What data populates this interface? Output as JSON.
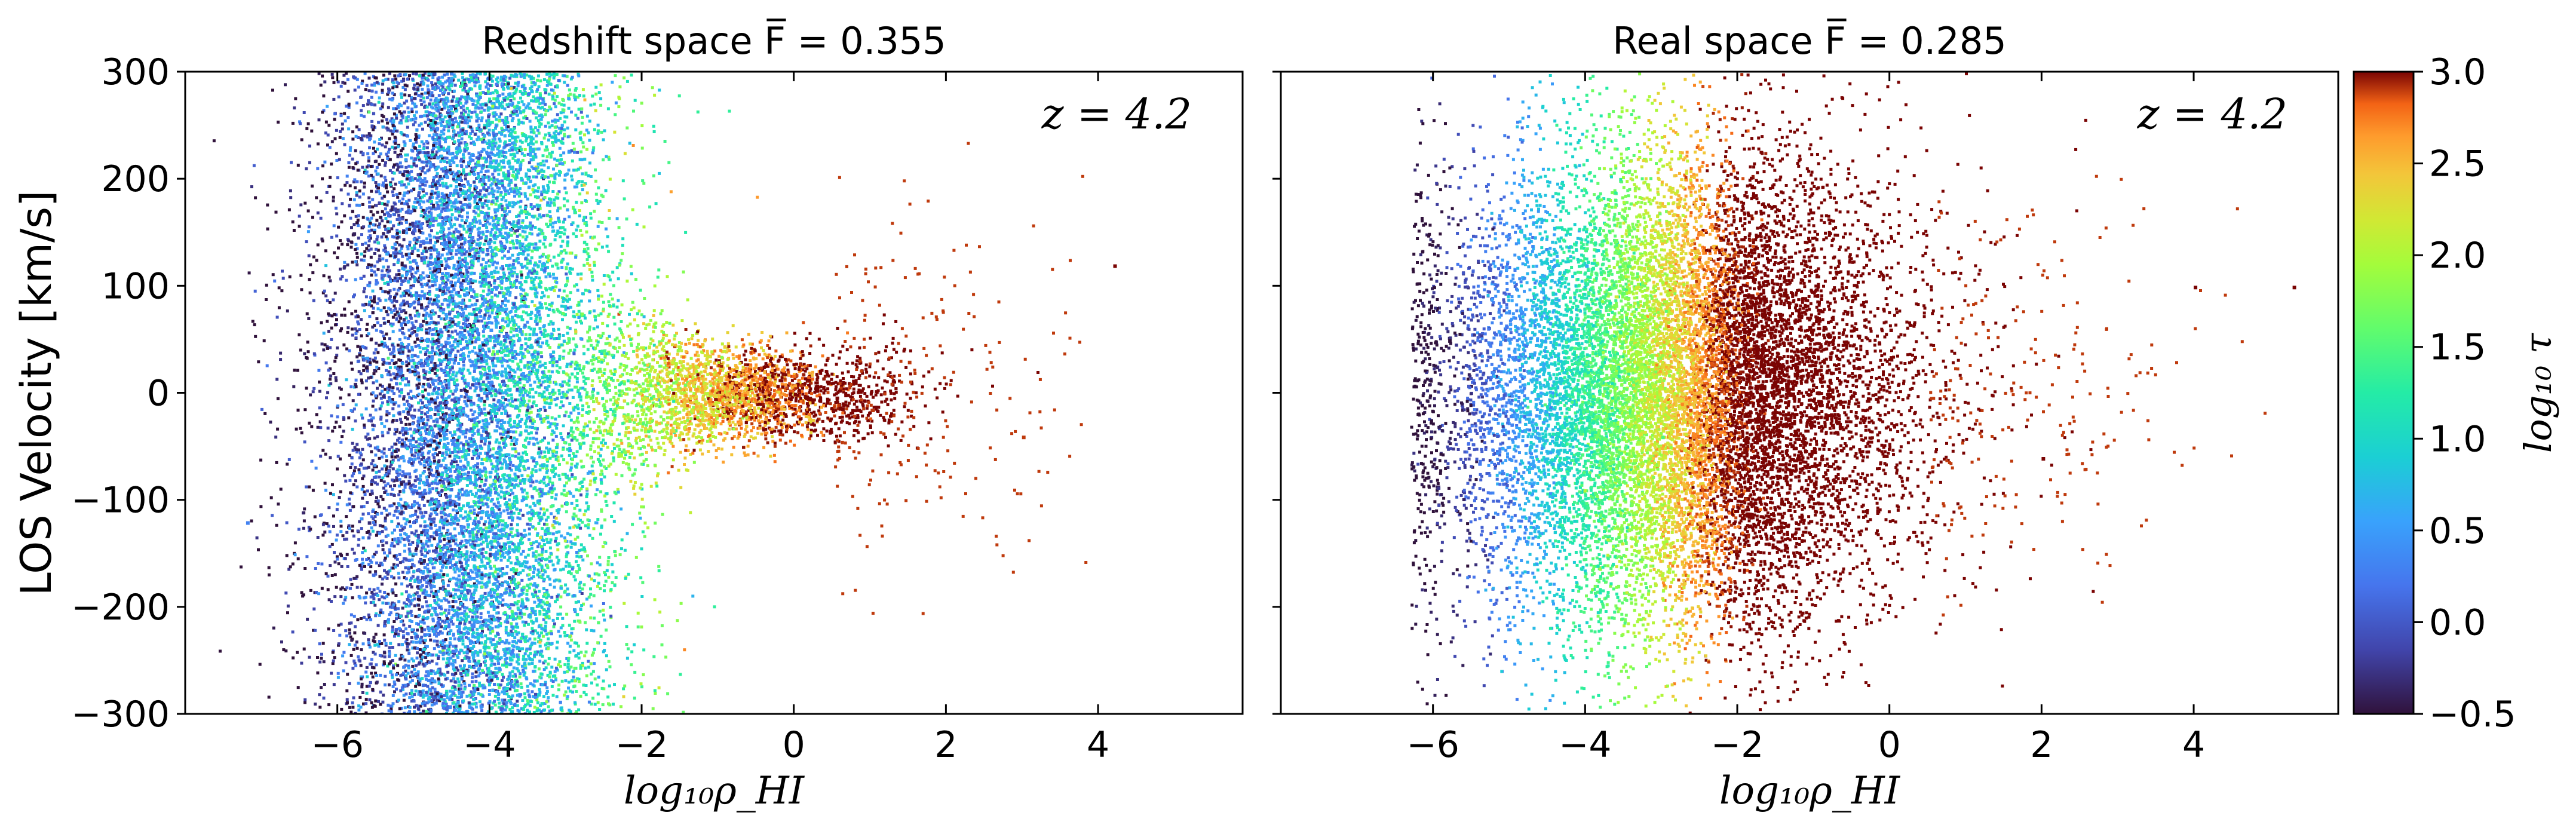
{
  "chart_data": {
    "type": "scatter",
    "colorbar": {
      "label": "log₁₀ τ",
      "range": [
        -0.5,
        3.0
      ],
      "ticks": [
        "3.0",
        "2.5",
        "2.0",
        "1.5",
        "1.0",
        "0.5",
        "0.0",
        "−0.5"
      ],
      "colormap": "turbo"
    },
    "panels": [
      {
        "title": "Redshift space  F̅ = 0.355",
        "annotation": "z = 4.2",
        "xlabel": "log₁₀ρ_HI",
        "ylabel": "LOS Velocity [km/s]",
        "xlim": [
          -8.0,
          5.9
        ],
        "ylim": [
          -300,
          300
        ],
        "xticks": [
          "−6",
          "−4",
          "−2",
          "0",
          "2",
          "4"
        ],
        "yticks": [
          "300",
          "200",
          "100",
          "0",
          "−100",
          "−200",
          "−300"
        ],
        "mean_flux": 0.355,
        "distribution": "tau correlates with velocity; high-tau (~3) points concentrated near v = 0 at log rho from -2 to 1; low-tau points spread across all velocities at log rho -6 to -3",
        "point_samples": [
          {
            "x": -5.8,
            "y": 150,
            "c": -0.4
          },
          {
            "x": -5.6,
            "y": -120,
            "c": -0.3
          },
          {
            "x": -5.0,
            "y": 220,
            "c": 0.0
          },
          {
            "x": -4.5,
            "y": -240,
            "c": 0.2
          },
          {
            "x": -4.0,
            "y": 60,
            "c": 0.4
          },
          {
            "x": -3.5,
            "y": -80,
            "c": 0.8
          },
          {
            "x": -3.0,
            "y": 10,
            "c": 1.5
          },
          {
            "x": -2.0,
            "y": 5,
            "c": 2.0
          },
          {
            "x": -1.0,
            "y": -5,
            "c": 2.8
          },
          {
            "x": 0.0,
            "y": 0,
            "c": 3.0
          },
          {
            "x": 1.5,
            "y": 30,
            "c": 2.9
          },
          {
            "x": 3.0,
            "y": -40,
            "c": 2.9
          },
          {
            "x": 4.2,
            "y": 120,
            "c": 3.0
          },
          {
            "x": -7.2,
            "y": -120,
            "c": 0.3
          }
        ]
      },
      {
        "title": "Real space  F̅ = 0.285",
        "annotation": "z = 4.2",
        "xlabel": "log₁₀ρ_HI",
        "ylabel": "",
        "xlim": [
          -8.0,
          5.9
        ],
        "ylim": [
          -300,
          300
        ],
        "xticks": [
          "−6",
          "−4",
          "−2",
          "0",
          "2",
          "4"
        ],
        "yticks": [],
        "mean_flux": 0.285,
        "distribution": "tau increases monotonically with log rho_HI independent of velocity: ~-0.5 at -6, ~0.5 at -4, ~1.5 at -3, ~2.5 at -2, ~3 above -1",
        "point_samples": [
          {
            "x": -5.8,
            "y": 50,
            "c": -0.5
          },
          {
            "x": -5.0,
            "y": -100,
            "c": 0.0
          },
          {
            "x": -4.0,
            "y": 120,
            "c": 0.6
          },
          {
            "x": -3.0,
            "y": -40,
            "c": 1.5
          },
          {
            "x": -2.0,
            "y": 80,
            "c": 2.5
          },
          {
            "x": -1.0,
            "y": -150,
            "c": 3.0
          },
          {
            "x": 0.0,
            "y": 60,
            "c": 3.0
          },
          {
            "x": 2.0,
            "y": -60,
            "c": 3.0
          },
          {
            "x": 4.0,
            "y": 100,
            "c": 3.0
          },
          {
            "x": 5.3,
            "y": 100,
            "c": 3.0
          }
        ]
      }
    ]
  }
}
